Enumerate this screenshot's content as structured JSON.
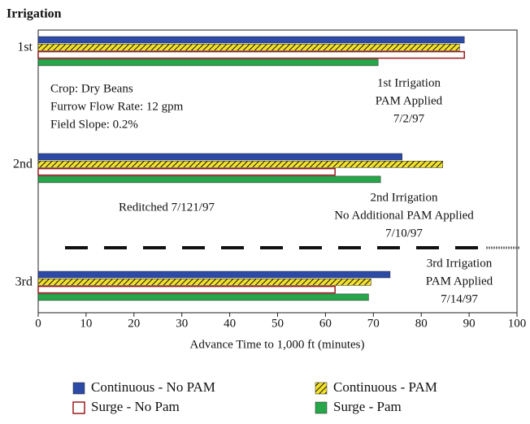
{
  "chart_data": {
    "type": "hbar",
    "title": "Irrigation",
    "xlabel": "Advance Time to 1,000 ft (minutes)",
    "categories": [
      "1st",
      "2nd",
      "3rd"
    ],
    "series": [
      {
        "name": "Continuous - No PAM",
        "color": "#2c4aa6",
        "values": [
          89,
          76,
          73.5
        ]
      },
      {
        "name": "Continuous - PAM",
        "color": "#f2e12a",
        "hatch": true,
        "values": [
          88,
          84.5,
          69.5
        ]
      },
      {
        "name": "Surge - No Pam",
        "color": "#ffffff",
        "edge": "#9a1c1c",
        "values": [
          89,
          62,
          62
        ]
      },
      {
        "name": "Surge - Pam",
        "color": "#27a64a",
        "values": [
          71,
          71.5,
          69
        ]
      }
    ],
    "xlim": [
      0,
      100
    ],
    "xticks": [
      0,
      10,
      20,
      30,
      40,
      50,
      60,
      70,
      80,
      90,
      100
    ],
    "annotations": [
      {
        "lines": [
          "Crop: Dry Beans",
          "Furrow Flow Rate: 12 gpm",
          "Field Slope: 0.2%"
        ]
      },
      {
        "lines": [
          "1st Irrigation",
          "PAM Applied",
          "7/2/97"
        ]
      },
      {
        "lines": [
          "Reditched 7/121/97"
        ]
      },
      {
        "lines": [
          "2nd Irrigation",
          "No Additional PAM Applied",
          "7/10/97"
        ]
      },
      {
        "lines": [
          "3rd Irrigation",
          "PAM Applied",
          "7/14/97"
        ]
      }
    ]
  }
}
